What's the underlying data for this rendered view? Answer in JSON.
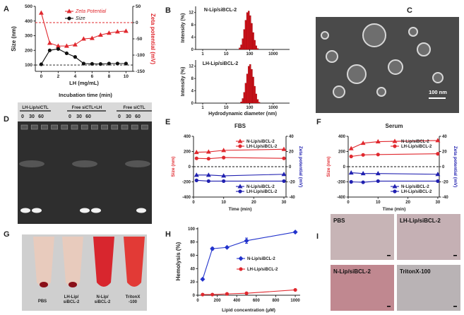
{
  "panels": {
    "letters": [
      "A",
      "B",
      "C",
      "D",
      "E",
      "F",
      "G",
      "H",
      "I"
    ],
    "C": {
      "scale_bar": "100 nm"
    },
    "D": {
      "title": "Incubation time (min)",
      "groups": [
        "LH-Lip/siCTL",
        "Free siCTL+LH",
        "Free siCTL"
      ],
      "times": [
        "0",
        "30",
        "60"
      ]
    },
    "G": {
      "tubes": [
        "PBS",
        "LH-Lip/\nsiBCL-2",
        "N-Lip/\nsiBCL-2",
        "TritonX\n-100"
      ]
    },
    "I": {
      "tiles": [
        "PBS",
        "LH-Lip/siBCL-2",
        "N-Lip/siBCL-2",
        "TritonX-100"
      ]
    }
  },
  "chart_data": [
    {
      "panel": "A",
      "type": "line",
      "xlabel": "LH (mg/mL)",
      "ylabel": "Size (nm)",
      "y2label": "Zeta potential (mV)",
      "xlim": [
        -0.7,
        10.8
      ],
      "ylim": [
        57,
        500
      ],
      "y2lim": [
        -150,
        50
      ],
      "x_ticks": [
        0,
        2,
        4,
        6,
        8,
        10
      ],
      "y_ticks": [
        100,
        200,
        300,
        400,
        500
      ],
      "y2_ticks": [
        -150,
        -100,
        -50,
        0,
        50
      ],
      "series": [
        {
          "name": "Zeta Potential",
          "axis": "right",
          "color": "#e0282e",
          "marker": "triangle",
          "x": [
            0,
            1,
            2,
            3,
            4,
            5,
            6,
            7,
            8,
            9,
            10
          ],
          "y": [
            30,
            -63,
            -72,
            -72,
            -68,
            -50,
            -48,
            -38,
            -32,
            -28,
            -26
          ]
        },
        {
          "name": "Size",
          "axis": "left",
          "color": "#111111",
          "marker": "circle",
          "x": [
            0,
            1,
            2,
            3,
            4,
            5,
            6,
            7,
            8,
            9,
            10
          ],
          "y": [
            105,
            200,
            210,
            180,
            155,
            110,
            108,
            107,
            110,
            110,
            110
          ]
        }
      ],
      "ref_lines": [
        {
          "axis": "right",
          "value": 0,
          "color": "#e0282e"
        },
        {
          "axis": "left",
          "value": 100,
          "color": "#111111"
        }
      ],
      "legend": "top-right",
      "grid": false
    },
    {
      "panel": "B-top",
      "type": "bar",
      "title": "N-Lip/siBCL-2",
      "xlabel": "",
      "ylabel": "Intensity (%)",
      "x_scale": "log",
      "xlim": [
        0.5,
        5000
      ],
      "ylim": [
        0,
        14
      ],
      "x_ticks": [
        1,
        10,
        100,
        1000
      ],
      "y_ticks": [
        0,
        4,
        8,
        12
      ],
      "color": "#d0121b",
      "x": [
        37.8,
        43.8,
        50.7,
        58.8,
        68.1,
        78.8,
        91.3,
        105.7,
        122.4,
        141.8,
        164.2,
        190.1,
        220.2
      ],
      "values": [
        0.5,
        1.5,
        3.5,
        6.5,
        9.5,
        12,
        12.5,
        11,
        8.5,
        5.5,
        3,
        1.2,
        0.3
      ]
    },
    {
      "panel": "B-bottom",
      "type": "bar",
      "title": "LH-Lip/siBCL-2",
      "xlabel": "Hydrodynamic diameter (nm)",
      "ylabel": "Intensity (%)",
      "x_scale": "log",
      "xlim": [
        0.5,
        5000
      ],
      "ylim": [
        0,
        14
      ],
      "x_ticks": [
        1,
        10,
        100,
        1000
      ],
      "y_ticks": [
        0,
        4,
        8,
        12
      ],
      "color": "#d0121b",
      "x": [
        43.8,
        50.7,
        58.8,
        68.1,
        78.8,
        91.3,
        105.7,
        122.4,
        141.8,
        164.2,
        190.1,
        220.2,
        255.0
      ],
      "values": [
        0.4,
        1.5,
        3.5,
        6.5,
        9.5,
        12,
        12.6,
        11,
        8.5,
        5.5,
        3,
        1.2,
        0.3
      ]
    },
    {
      "panel": "E",
      "type": "line",
      "title": "FBS",
      "xlabel": "Time (min)",
      "ylabel": "Size (nm)",
      "y2label": "Zeta potential (mV)",
      "xlim": [
        0,
        30.7
      ],
      "ylim": [
        -400,
        400
      ],
      "y2lim": [
        -40,
        40
      ],
      "x_ticks": [
        0,
        10,
        20,
        30
      ],
      "y_ticks": [
        -400,
        -200,
        0,
        200,
        400
      ],
      "y2_ticks": [
        -40,
        -20,
        0,
        20,
        40
      ],
      "series": [
        {
          "name": "N-Lip/siBCL-2",
          "axis": "left",
          "color": "#e0282e",
          "marker": "triangle",
          "x": [
            1,
            5,
            10,
            30
          ],
          "y": [
            190,
            195,
            215,
            230
          ]
        },
        {
          "name": "LH-Lip/siBCL-2",
          "axis": "left",
          "color": "#e0282e",
          "marker": "circle",
          "x": [
            1,
            5,
            10,
            30
          ],
          "y": [
            110,
            105,
            120,
            110
          ]
        },
        {
          "name": "N-Lip/siBCL-2",
          "axis": "right",
          "color": "#2020b0",
          "marker": "triangle",
          "x": [
            1,
            5,
            10,
            30
          ],
          "y": [
            -11,
            -11,
            -12,
            -10
          ]
        },
        {
          "name": "LH-Lip/siBCL-2",
          "axis": "right",
          "color": "#2020b0",
          "marker": "circle",
          "x": [
            1,
            5,
            10,
            30
          ],
          "y": [
            -18,
            -19,
            -19,
            -19
          ]
        }
      ],
      "ref_lines": [
        {
          "axis": "left",
          "value": 0,
          "color": "#111111"
        }
      ],
      "legend": "top-right and bottom-right",
      "grid": false
    },
    {
      "panel": "F",
      "type": "line",
      "title": "Serum",
      "xlabel": "Time (min)",
      "ylabel": "Size (nm)",
      "y2label": "Zeta potential (mV)",
      "xlim": [
        0,
        30.5
      ],
      "ylim": [
        -400,
        400
      ],
      "y2lim": [
        -40,
        40
      ],
      "x_ticks": [
        0,
        10,
        20,
        30
      ],
      "y_ticks": [
        -400,
        -200,
        0,
        200,
        400
      ],
      "y2_ticks": [
        -40,
        -20,
        0,
        20,
        40
      ],
      "series": [
        {
          "name": "N-Lip/siBCL-2",
          "axis": "left",
          "color": "#e0282e",
          "marker": "triangle",
          "x": [
            1,
            5,
            10,
            30
          ],
          "y": [
            240,
            310,
            330,
            345
          ]
        },
        {
          "name": "LH-Lip/siBCL-2",
          "axis": "left",
          "color": "#e0282e",
          "marker": "circle",
          "x": [
            1,
            5,
            10,
            30
          ],
          "y": [
            135,
            155,
            160,
            170
          ]
        },
        {
          "name": "N-Lip/siBCL-2",
          "axis": "right",
          "color": "#2020b0",
          "marker": "triangle",
          "x": [
            1,
            5,
            10,
            30
          ],
          "y": [
            -8,
            -9,
            -9,
            -10
          ]
        },
        {
          "name": "LH-Lip/siBCL-2",
          "axis": "right",
          "color": "#2020b0",
          "marker": "circle",
          "x": [
            1,
            5,
            10,
            30
          ],
          "y": [
            -20,
            -20.5,
            -19,
            -19
          ]
        }
      ],
      "ref_lines": [
        {
          "axis": "left",
          "value": 0,
          "color": "#111111"
        }
      ],
      "legend": "top-right and bottom-right",
      "grid": false
    },
    {
      "panel": "H",
      "type": "line",
      "xlabel": "Lipid concentration (μM)",
      "ylabel": "Hemolysis (%)",
      "xlim": [
        0,
        1050
      ],
      "ylim": [
        0,
        102
      ],
      "x_ticks": [
        0,
        200,
        400,
        600,
        800,
        1000
      ],
      "y_ticks": [
        0,
        20,
        40,
        60,
        80,
        100
      ],
      "series": [
        {
          "name": "N-Lip/siBCL-2",
          "axis": "left",
          "color": "#2233cc",
          "marker": "diamond",
          "x": [
            50,
            150,
            300,
            500,
            1000
          ],
          "y": [
            24,
            70,
            72,
            82,
            95
          ]
        },
        {
          "name": "LH-Lip/siBCL-2",
          "axis": "left",
          "color": "#e0282e",
          "marker": "circle",
          "x": [
            50,
            150,
            300,
            500,
            1000
          ],
          "y": [
            1,
            1,
            2,
            3,
            8
          ]
        }
      ],
      "legend": "center-right",
      "grid": false
    }
  ]
}
